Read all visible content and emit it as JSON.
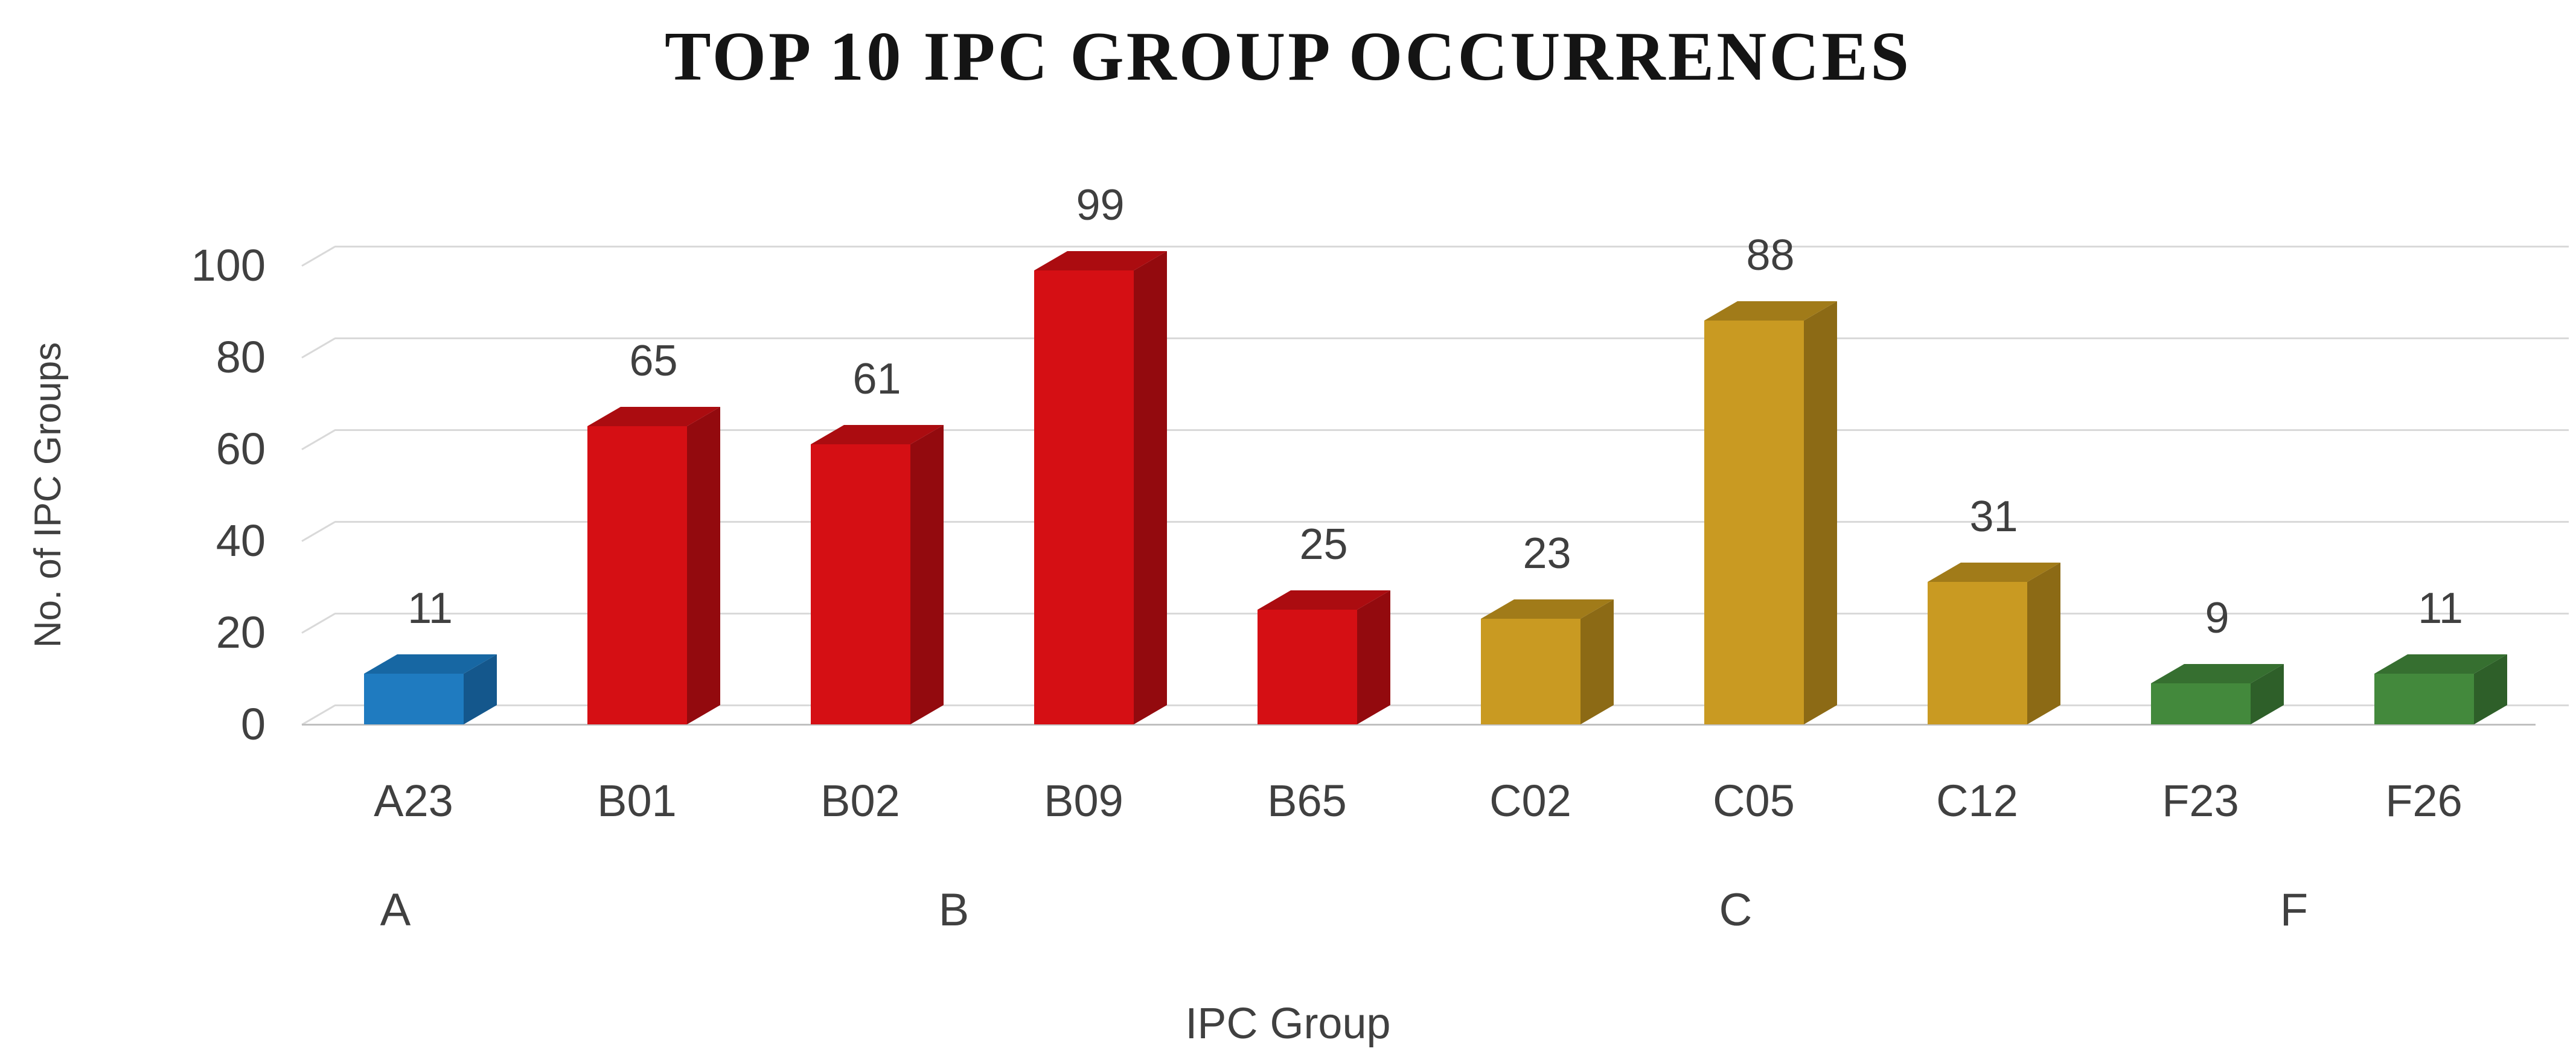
{
  "title": "TOP 10 IPC GROUP OCCURRENCES",
  "background_color": "#FFFFFF",
  "chart_data": {
    "type": "bar",
    "style": "3d",
    "title": "TOP 10 IPC GROUP OCCURRENCES",
    "xlabel": "IPC Group",
    "ylabel": "No. of IPC Groups",
    "categories": [
      "A23",
      "B01",
      "B02",
      "B09",
      "B65",
      "C02",
      "C05",
      "C12",
      "F23",
      "F26"
    ],
    "values": [
      11,
      65,
      61,
      99,
      25,
      23,
      88,
      31,
      9,
      11
    ],
    "data_labels_shown": true,
    "yticks": [
      0,
      20,
      40,
      60,
      80,
      100
    ],
    "ylim": [
      0,
      100
    ],
    "grid": true,
    "gridline_color": "#D9D9D9",
    "axis_line_color": "#C0C0C0",
    "text_color": "#404040",
    "legend": "none",
    "groups": [
      {
        "label": "A",
        "start": 0,
        "end": 0,
        "color": {
          "front": "#1F7BC0",
          "side": "#14578C",
          "top": "#1767A3"
        }
      },
      {
        "label": "B",
        "start": 1,
        "end": 4,
        "color": {
          "front": "#D50F14",
          "side": "#930A0E",
          "top": "#AB0C10"
        }
      },
      {
        "label": "C",
        "start": 5,
        "end": 7,
        "color": {
          "front": "#C99A22",
          "side": "#8C6A15",
          "top": "#A17B19"
        }
      },
      {
        "label": "F",
        "start": 8,
        "end": 9,
        "color": {
          "front": "#43893C",
          "side": "#2E5F29",
          "top": "#366F30"
        }
      }
    ]
  }
}
